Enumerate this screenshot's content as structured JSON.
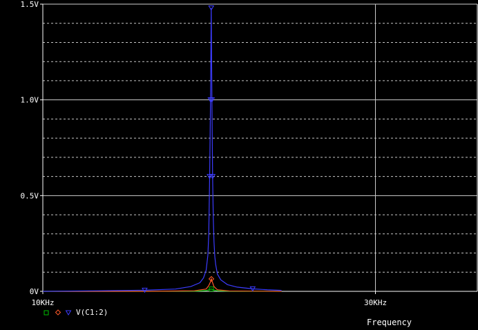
{
  "chart_data": {
    "type": "line",
    "title": "",
    "xlabel": "Frequency",
    "ylabel": "",
    "x_scale": "log",
    "xlim": [
      10000,
      42000
    ],
    "ylim": [
      0,
      1.5
    ],
    "x_ticks": [
      {
        "value": 10000,
        "label": "10KHz"
      },
      {
        "value": 30000,
        "label": "30KHz"
      }
    ],
    "y_ticks": [
      {
        "value": 0,
        "label": "0V"
      },
      {
        "value": 0.5,
        "label": "0.5V"
      },
      {
        "value": 1.0,
        "label": "1.0V"
      },
      {
        "value": 1.5,
        "label": "1.5V"
      }
    ],
    "grid": true,
    "legend": {
      "position": "bottom-left",
      "label": "V(C1:2)"
    },
    "series": [
      {
        "name": "V(C1:2)",
        "color": "#3c3cff",
        "marker": "triangle-down",
        "x": [
          10000,
          12000,
          14000,
          15500,
          16300,
          16800,
          17000,
          17150,
          17250,
          17300,
          17350,
          17400,
          17440,
          17480,
          17520,
          17560,
          17600,
          17650,
          17700,
          17800,
          18000,
          18400,
          19000,
          20000,
          21000,
          22000
        ],
        "y": [
          0.0,
          0.003,
          0.006,
          0.012,
          0.025,
          0.045,
          0.07,
          0.11,
          0.19,
          0.3,
          0.6,
          1.0,
          1.48,
          1.0,
          0.6,
          0.38,
          0.26,
          0.18,
          0.14,
          0.09,
          0.06,
          0.035,
          0.022,
          0.013,
          0.008,
          0.005
        ]
      },
      {
        "name": "",
        "color": "#ff5a2a",
        "marker": "diamond",
        "x": [
          10000,
          14000,
          16500,
          17150,
          17300,
          17400,
          17450,
          17500,
          17600,
          17800,
          18500,
          22000
        ],
        "y": [
          0.0,
          0.0,
          0.003,
          0.012,
          0.03,
          0.05,
          0.065,
          0.05,
          0.025,
          0.008,
          0.002,
          0.0
        ]
      },
      {
        "name": "",
        "color": "#00c000",
        "marker": "square",
        "x": [
          10000,
          14000,
          16500,
          17150,
          17350,
          17450,
          17550,
          17800,
          18500,
          22000
        ],
        "y": [
          0.0,
          0.0,
          0.001,
          0.004,
          0.01,
          0.012,
          0.008,
          0.003,
          0.001,
          0.0
        ]
      }
    ]
  }
}
